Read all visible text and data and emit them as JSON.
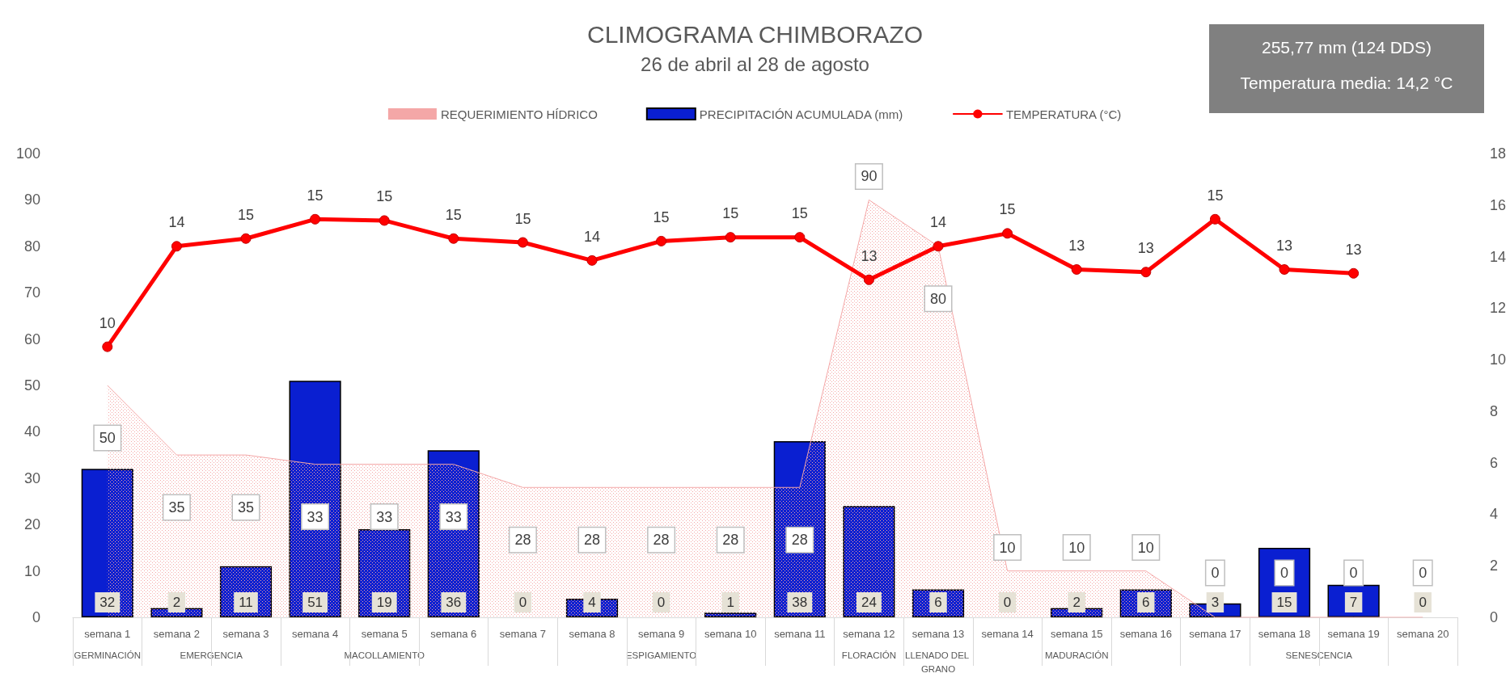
{
  "chart_data": {
    "type": "bar",
    "title": "CLIMOGRAMA CHIMBORAZO",
    "subtitle": "26 de abril al 28 de agosto",
    "categories": [
      "semana 1",
      "semana 2",
      "semana 3",
      "semana 4",
      "semana 5",
      "semana 6",
      "semana 7",
      "semana 8",
      "semana 9",
      "semana 10",
      "semana 11",
      "semana 12",
      "semana 13",
      "semana 14",
      "semana 15",
      "semana 16",
      "semana 17",
      "semana 18",
      "semana 19",
      "semana 20"
    ],
    "series": [
      {
        "type": "area",
        "name": "REQUERIMIENTO HÍDRICO",
        "color": "#f4a7a7",
        "values": [
          50,
          35,
          35,
          33,
          33,
          33,
          28,
          28,
          28,
          28,
          28,
          90,
          80,
          10,
          10,
          10,
          0,
          0,
          0,
          0
        ]
      },
      {
        "name": "PRECIPITACIÓN ACUMULADA (mm)",
        "color": "#0a1fd1",
        "values": [
          32,
          2,
          11,
          51,
          19,
          36,
          0,
          4,
          0,
          1,
          38,
          24,
          6,
          0,
          2,
          6,
          3,
          15,
          7,
          0
        ]
      },
      {
        "type": "line",
        "axis": "y2",
        "marker": "circle",
        "name": "TEMPERATURA (°C)",
        "color": "#ff0000",
        "values": [
          10.5,
          14.4,
          14.7,
          15.45,
          15.4,
          14.7,
          14.55,
          13.85,
          14.6,
          14.75,
          14.75,
          13.1,
          14.4,
          14.9,
          13.5,
          13.4,
          15.45,
          13.5,
          13.35,
          null
        ],
        "value_labels": [
          "10",
          "14",
          "15",
          "15",
          "15",
          "15",
          "15",
          "14",
          "15",
          "15",
          "15",
          "13",
          "14",
          "15",
          "13",
          "13",
          "15",
          "13",
          "13",
          null
        ]
      }
    ],
    "data_labels": true,
    "legend": "top",
    "grid": false,
    "ylim": [
      0,
      100
    ],
    "yticks": [
      0,
      10,
      20,
      30,
      40,
      50,
      60,
      70,
      80,
      90,
      100
    ],
    "y2lim": [
      0,
      18
    ],
    "y2ticks": [
      0,
      2,
      4,
      6,
      8,
      10,
      12,
      14,
      16,
      18
    ],
    "annotations": [
      "255,77 mm (124 DDS)",
      "Temperatura media: 14,2 °C",
      "GERMINACIÓN",
      "EMERGENCIA",
      "MACOLLAMIENTO",
      "ESPIGAMIENTO",
      "FLORACIÓN",
      "LLENADO DEL GRANO",
      "MADURACIÓN",
      "SENESCENCIA"
    ]
  }
}
